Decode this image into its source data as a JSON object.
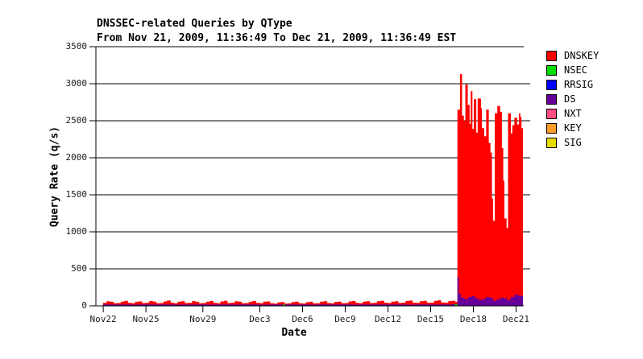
{
  "chart_data": {
    "type": "area",
    "variant": "stacked-step-area-timeseries",
    "title": "DNSSEC-related Queries by QType",
    "subtitle": "From Nov 21, 2009, 11:36:49 To Dec 21, 2009, 11:36:49 EST",
    "xlabel": "Date",
    "ylabel": "Query Rate (q/s)",
    "ylim": [
      0,
      3500
    ],
    "yticks": [
      0,
      500,
      1000,
      1500,
      2000,
      2500,
      3000,
      3500
    ],
    "x_range_days": 30,
    "grid": "horizontal",
    "legend_position": "right",
    "xticks": [
      {
        "label": "Nov22",
        "t": 0.516
      },
      {
        "label": "Nov25",
        "t": 3.516
      },
      {
        "label": "Nov29",
        "t": 7.516
      },
      {
        "label": "Dec3",
        "t": 11.516
      },
      {
        "label": "Dec6",
        "t": 14.516
      },
      {
        "label": "Dec9",
        "t": 17.516
      },
      {
        "label": "Dec12",
        "t": 20.516
      },
      {
        "label": "Dec15",
        "t": 23.516
      },
      {
        "label": "Dec18",
        "t": 26.516
      },
      {
        "label": "Dec21",
        "t": 29.516
      }
    ],
    "legend": [
      {
        "label": "DNSKEY",
        "color": "#FF0000"
      },
      {
        "label": "NSEC",
        "color": "#00DD00"
      },
      {
        "label": "RRSIG",
        "color": "#0000FF"
      },
      {
        "label": "DS",
        "color": "#660099"
      },
      {
        "label": "NXT",
        "color": "#FF4D82"
      },
      {
        "label": "KEY",
        "color": "#FF9E27"
      },
      {
        "label": "SIG",
        "color": "#E6DC00"
      }
    ],
    "colors": {
      "background": "#FFFFFF",
      "grid": "#000000",
      "axis": "#000000",
      "text": "#000000"
    },
    "series": {
      "dnskey_total": {
        "baseline": {
          "t_start": 0.5,
          "t_step": 0.25,
          "values": [
            40,
            62,
            55,
            35,
            38,
            58,
            68,
            40,
            35,
            55,
            60,
            38,
            42,
            65,
            58,
            36,
            38,
            60,
            72,
            42,
            36,
            56,
            62,
            38,
            40,
            64,
            55,
            35,
            38,
            58,
            66,
            40,
            35,
            60,
            70,
            38,
            42,
            62,
            56,
            36,
            38,
            55,
            65,
            40,
            36,
            58,
            60,
            35,
            30,
            48,
            52,
            32,
            34,
            52,
            58,
            36,
            32,
            50,
            55,
            34,
            36,
            56,
            62,
            38,
            34,
            54,
            58,
            35,
            38,
            60,
            65,
            40,
            36,
            58,
            62,
            38,
            40,
            62,
            68,
            42,
            38,
            58,
            63,
            39,
            42,
            66,
            72,
            44,
            40,
            62,
            68,
            42,
            44,
            68,
            75,
            46,
            42,
            64,
            70,
            55
          ]
        },
        "spike": [
          [
            25.4,
            2650
          ],
          [
            25.58,
            3130
          ],
          [
            25.72,
            2570
          ],
          [
            25.85,
            2500
          ],
          [
            25.95,
            2990
          ],
          [
            26.12,
            2715
          ],
          [
            26.25,
            2460
          ],
          [
            26.33,
            2900
          ],
          [
            26.45,
            2390
          ],
          [
            26.55,
            2790
          ],
          [
            26.72,
            2340
          ],
          [
            26.82,
            2800
          ],
          [
            27.05,
            2670
          ],
          [
            27.12,
            2400
          ],
          [
            27.28,
            2290
          ],
          [
            27.42,
            2650
          ],
          [
            27.6,
            2200
          ],
          [
            27.72,
            2070
          ],
          [
            27.82,
            1450
          ],
          [
            27.9,
            1150
          ],
          [
            28.02,
            2600
          ],
          [
            28.2,
            2700
          ],
          [
            28.4,
            2620
          ],
          [
            28.52,
            2130
          ],
          [
            28.62,
            1690
          ],
          [
            28.7,
            1180
          ],
          [
            28.85,
            1050
          ],
          [
            28.95,
            2600
          ],
          [
            29.15,
            2330
          ],
          [
            29.25,
            2440
          ],
          [
            29.4,
            2540
          ],
          [
            29.6,
            2450
          ],
          [
            29.72,
            2600
          ],
          [
            29.82,
            2550
          ],
          [
            29.9,
            2400
          ]
        ]
      },
      "ds": {
        "baseline": {
          "t_start": 0.5,
          "t_step": 0.5,
          "values": [
            18,
            20,
            17,
            19,
            16,
            18,
            20,
            17,
            18,
            19,
            16,
            18,
            17,
            20,
            18,
            16,
            19,
            18,
            17,
            18,
            20,
            18,
            16,
            17,
            19,
            18,
            20,
            17,
            18,
            16,
            18,
            19,
            17,
            18,
            20,
            16,
            18,
            17,
            19,
            18,
            20,
            18,
            17,
            16,
            18,
            19,
            17,
            18,
            20,
            22
          ]
        },
        "spike": [
          [
            25.35,
            30
          ],
          [
            25.4,
            390
          ],
          [
            25.5,
            160
          ],
          [
            25.65,
            110
          ],
          [
            25.9,
            90
          ],
          [
            26.15,
            120
          ],
          [
            26.4,
            130
          ],
          [
            26.65,
            100
          ],
          [
            26.9,
            80
          ],
          [
            27.15,
            95
          ],
          [
            27.4,
            120
          ],
          [
            27.65,
            110
          ],
          [
            27.9,
            70
          ],
          [
            28.15,
            90
          ],
          [
            28.4,
            110
          ],
          [
            28.65,
            100
          ],
          [
            28.9,
            80
          ],
          [
            29.15,
            120
          ],
          [
            29.4,
            150
          ],
          [
            29.65,
            140
          ],
          [
            29.9,
            130
          ]
        ]
      },
      "nsec_blips": [
        [
          13.2,
          18
        ],
        [
          25.3,
          25
        ]
      ]
    }
  }
}
